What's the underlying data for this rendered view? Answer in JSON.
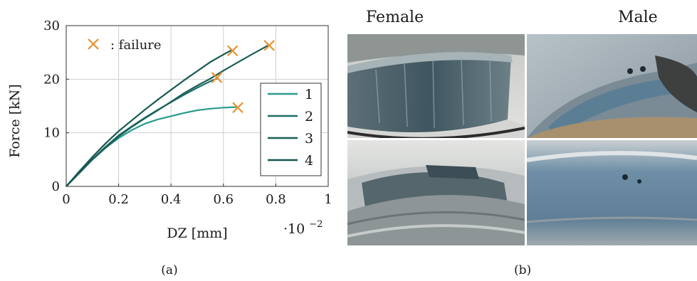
{
  "panel_a": {
    "caption": "(a)"
  },
  "panel_b": {
    "caption": "(b)",
    "female_label": "Female",
    "male_label": "Male",
    "photos": [
      "female-top",
      "female-bottom",
      "male-top",
      "male-bottom"
    ]
  },
  "chart_data": {
    "type": "line",
    "xlabel": "DZ [mm]",
    "ylabel": "Force [kN]",
    "x_multiplier_label": "·10",
    "x_multiplier_exp": "−2",
    "xlim": [
      0,
      1
    ],
    "ylim": [
      0,
      30
    ],
    "x_ticks": [
      0,
      0.2,
      0.4,
      0.6,
      0.8,
      1
    ],
    "x_tick_labels": [
      "0",
      "0.2",
      "0.4",
      "0.6",
      "0.8",
      "1"
    ],
    "y_ticks": [
      0,
      10,
      20,
      30
    ],
    "y_tick_labels": [
      "0",
      "10",
      "20",
      "30"
    ],
    "grid": true,
    "legend_position": "bottom-right",
    "failure_legend": ": failure",
    "failure_color": "#e8912d",
    "series": [
      {
        "name": "1",
        "color": "#2a9b8f",
        "x": [
          0,
          0.05,
          0.1,
          0.15,
          0.2,
          0.25,
          0.3,
          0.35,
          0.4,
          0.45,
          0.5,
          0.55,
          0.6,
          0.65
        ],
        "y": [
          0,
          2.5,
          5,
          7.2,
          9,
          10.5,
          11.7,
          12.5,
          13.1,
          13.7,
          14.2,
          14.5,
          14.7,
          14.8
        ]
      },
      {
        "name": "2",
        "color": "#1d6f67",
        "x": [
          0,
          0.05,
          0.1,
          0.15,
          0.2,
          0.25,
          0.3,
          0.35,
          0.4,
          0.45,
          0.5,
          0.55,
          0.58
        ],
        "y": [
          0,
          2.6,
          5.1,
          7.4,
          9.5,
          11.2,
          12.8,
          14.3,
          15.7,
          17.1,
          18.4,
          19.6,
          20.2
        ]
      },
      {
        "name": "3",
        "color": "#1b5e57",
        "x": [
          0,
          0.05,
          0.1,
          0.15,
          0.2,
          0.25,
          0.3,
          0.35,
          0.4,
          0.45,
          0.5,
          0.55,
          0.6,
          0.65,
          0.7,
          0.77
        ],
        "y": [
          0,
          2.5,
          5,
          7.2,
          9.3,
          11.1,
          12.7,
          14.2,
          15.8,
          17.4,
          18.8,
          20.1,
          21.6,
          23,
          24.4,
          26.3
        ]
      },
      {
        "name": "4",
        "color": "#175751",
        "x": [
          0,
          0.05,
          0.1,
          0.15,
          0.2,
          0.25,
          0.3,
          0.35,
          0.4,
          0.45,
          0.5,
          0.55,
          0.6,
          0.63
        ],
        "y": [
          0,
          2.8,
          5.5,
          8,
          10.3,
          12.3,
          14.3,
          16.2,
          18,
          19.8,
          21.5,
          23.2,
          24.6,
          25.4
        ]
      }
    ],
    "failures": [
      {
        "x": 0.655,
        "y": 14.7
      },
      {
        "x": 0.575,
        "y": 20.3
      },
      {
        "x": 0.635,
        "y": 25.3
      },
      {
        "x": 0.775,
        "y": 26.3
      }
    ]
  }
}
